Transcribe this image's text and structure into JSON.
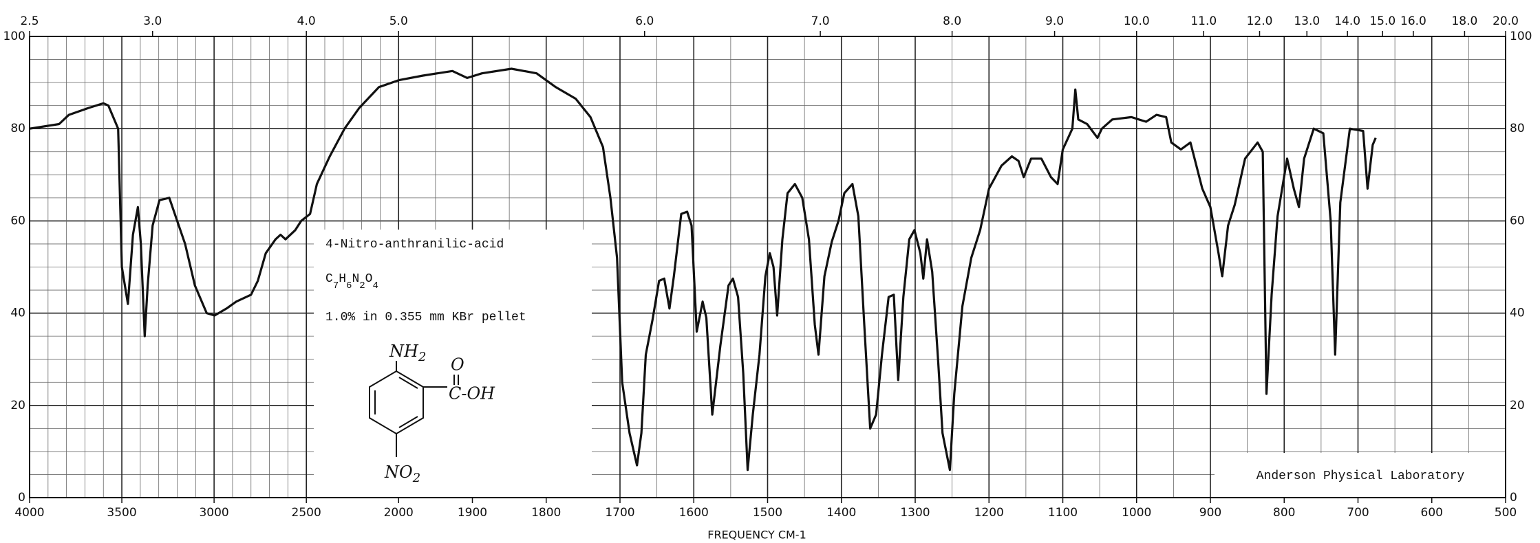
{
  "chart_data": {
    "type": "line",
    "color": "#111",
    "x_label": "FREQUENCY   CM-1",
    "xlim": [
      4000,
      500
    ],
    "x_scale_break": 2000,
    "ylim": [
      0,
      100
    ],
    "xticks": [
      4000,
      3500,
      3000,
      2500,
      2000,
      1900,
      1800,
      1700,
      1600,
      1500,
      1400,
      1300,
      1200,
      1100,
      1000,
      900,
      800,
      700,
      600,
      500
    ],
    "yticks": [
      0,
      20,
      40,
      60,
      80,
      100
    ],
    "ygrid": [
      0,
      5,
      10,
      15,
      20,
      25,
      30,
      35,
      40,
      45,
      50,
      55,
      60,
      65,
      70,
      75,
      80,
      85,
      90,
      95,
      100
    ],
    "xgrid": [
      4000,
      3900,
      3800,
      3700,
      3600,
      3500,
      3400,
      3300,
      3200,
      3100,
      3000,
      2900,
      2800,
      2700,
      2600,
      2500,
      2400,
      2300,
      2200,
      2100,
      2000,
      1950,
      1900,
      1850,
      1800,
      1750,
      1700,
      1650,
      1600,
      1550,
      1500,
      1450,
      1400,
      1350,
      1300,
      1250,
      1200,
      1150,
      1100,
      1050,
      1000,
      950,
      900,
      850,
      800,
      750,
      700,
      650,
      600,
      550,
      500
    ],
    "micron_ticks": [
      {
        "value": 2.5,
        "label": "2.5"
      },
      {
        "value": 3,
        "label": "3.0"
      },
      {
        "value": 4,
        "label": "4.0"
      },
      {
        "value": 5,
        "label": "5.0"
      },
      {
        "value": 6,
        "label": "6.0"
      },
      {
        "value": 7,
        "label": "7.0"
      },
      {
        "value": 8,
        "label": "8.0"
      },
      {
        "value": 9,
        "label": "9.0"
      },
      {
        "value": 10,
        "label": "10.0"
      },
      {
        "value": 11,
        "label": "11.0"
      },
      {
        "value": 12,
        "label": "12.0"
      },
      {
        "value": 13,
        "label": "13.0"
      },
      {
        "value": 14,
        "label": "14.0"
      },
      {
        "value": 15,
        "label": "15.0"
      },
      {
        "value": 16,
        "label": "16.0"
      },
      {
        "value": 18,
        "label": "18.0"
      },
      {
        "value": 20,
        "label": "20.0"
      }
    ],
    "x": [
      4000,
      3840,
      3787,
      3680,
      3600,
      3573,
      3520,
      3500,
      3467,
      3440,
      3413,
      3397,
      3376,
      3360,
      3333,
      3296,
      3243,
      3200,
      3157,
      3104,
      3040,
      2997,
      2933,
      2880,
      2800,
      2763,
      2720,
      2667,
      2640,
      2613,
      2560,
      2528,
      2480,
      2443,
      2373,
      2293,
      2213,
      2107,
      2000,
      1967,
      1927,
      1907,
      1887,
      1847,
      1813,
      1787,
      1760,
      1740,
      1723,
      1713,
      1704,
      1697,
      1687,
      1677,
      1671,
      1665,
      1656,
      1647,
      1640,
      1633,
      1627,
      1617,
      1609,
      1603,
      1596,
      1588,
      1583,
      1575,
      1564,
      1553,
      1547,
      1540,
      1533,
      1527,
      1520,
      1511,
      1503,
      1497,
      1492,
      1487,
      1480,
      1473,
      1463,
      1453,
      1444,
      1436,
      1431,
      1423,
      1413,
      1404,
      1396,
      1385,
      1377,
      1369,
      1361,
      1353,
      1345,
      1336,
      1329,
      1323,
      1316,
      1308,
      1301,
      1293,
      1289,
      1284,
      1277,
      1269,
      1263,
      1253,
      1247,
      1236,
      1224,
      1212,
      1200,
      1183,
      1169,
      1160,
      1153,
      1143,
      1129,
      1116,
      1107,
      1100,
      1087,
      1083,
      1079,
      1067,
      1053,
      1047,
      1033,
      1007,
      987,
      973,
      960,
      953,
      940,
      927,
      911,
      900,
      889,
      884,
      876,
      867,
      853,
      836,
      829,
      824,
      817,
      809,
      796,
      787,
      780,
      773,
      760,
      747,
      737,
      731,
      724,
      711,
      693,
      687,
      680,
      676
    ],
    "values": [
      80,
      81,
      83,
      84.5,
      85.5,
      85,
      80,
      50,
      42,
      57,
      63,
      55,
      35,
      46,
      59,
      64.5,
      65,
      60,
      55,
      46,
      40,
      39.5,
      41,
      42.5,
      44,
      47,
      53,
      56,
      57,
      56,
      58,
      60,
      61.5,
      68,
      74,
      80,
      84.5,
      89,
      90.5,
      91.5,
      92.5,
      91,
      92,
      93,
      92,
      89,
      86.5,
      82.5,
      76,
      65,
      52,
      25,
      14,
      7,
      14,
      31,
      38.5,
      47,
      47.5,
      41,
      48,
      61.5,
      62,
      59,
      36,
      42.5,
      39,
      18,
      33,
      46,
      47.5,
      43.5,
      27,
      6,
      18,
      31,
      48,
      53,
      50,
      39.5,
      56,
      66,
      68,
      65,
      56,
      37.5,
      31,
      48,
      55.5,
      60,
      66,
      68,
      61,
      37.5,
      15,
      18,
      31,
      43.5,
      44,
      25.5,
      43.5,
      56,
      58,
      53,
      47.5,
      56,
      49,
      30,
      14,
      6,
      22.5,
      41.5,
      52,
      58,
      67,
      72,
      74,
      73,
      69.5,
      73.5,
      73.5,
      69.5,
      68,
      75.5,
      80,
      88.5,
      82,
      81,
      78,
      80,
      82,
      82.5,
      81.5,
      83,
      82.5,
      77,
      75.5,
      77,
      67,
      63,
      53,
      48,
      59,
      63.5,
      73.5,
      77,
      75,
      22.5,
      44,
      61,
      73.5,
      67,
      63,
      73.5,
      80,
      79,
      60,
      31,
      64,
      80,
      79.5,
      67,
      76.5,
      78
    ],
    "compound": "4-Nitro-anthranilic-acid",
    "formula_parts": [
      "C",
      "7",
      "H",
      "6",
      "N",
      "2",
      "O",
      "4"
    ],
    "sample": "1.0% in 0.355 mm  KBr pellet",
    "structure": {
      "amine": [
        "NH",
        "2"
      ],
      "carboxyl": "C-OH",
      "carbonyl_o": "O",
      "nitro": [
        "NO",
        "2"
      ]
    },
    "laboratory": "Anderson Physical Laboratory"
  }
}
